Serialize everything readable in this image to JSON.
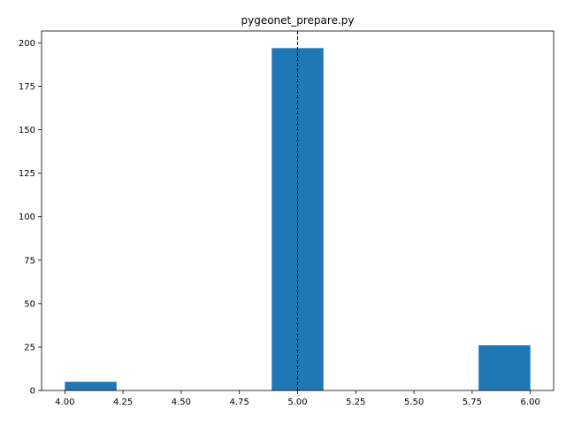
{
  "chart_data": {
    "type": "bar",
    "title": "pygeonet_prepare.py",
    "xlabel": "",
    "ylabel": "",
    "xlim": [
      3.9,
      6.1
    ],
    "ylim": [
      0,
      206.85
    ],
    "bin_width": 0.2222,
    "bars": [
      {
        "x_start": 4.0,
        "x_end": 4.2222,
        "value": 5
      },
      {
        "x_start": 4.8889,
        "x_end": 5.1111,
        "value": 197
      },
      {
        "x_start": 5.7778,
        "x_end": 6.0,
        "value": 26
      }
    ],
    "reference_line": {
      "x": 5.0,
      "style": "dashed",
      "color": "#000000"
    },
    "x_ticks": [
      "4.00",
      "4.25",
      "4.50",
      "4.75",
      "5.00",
      "5.25",
      "5.50",
      "5.75",
      "6.00"
    ],
    "y_ticks": [
      "0",
      "25",
      "50",
      "75",
      "100",
      "125",
      "150",
      "175",
      "200"
    ],
    "bar_color": "#1f77b4",
    "grid": false,
    "legend": "none"
  }
}
